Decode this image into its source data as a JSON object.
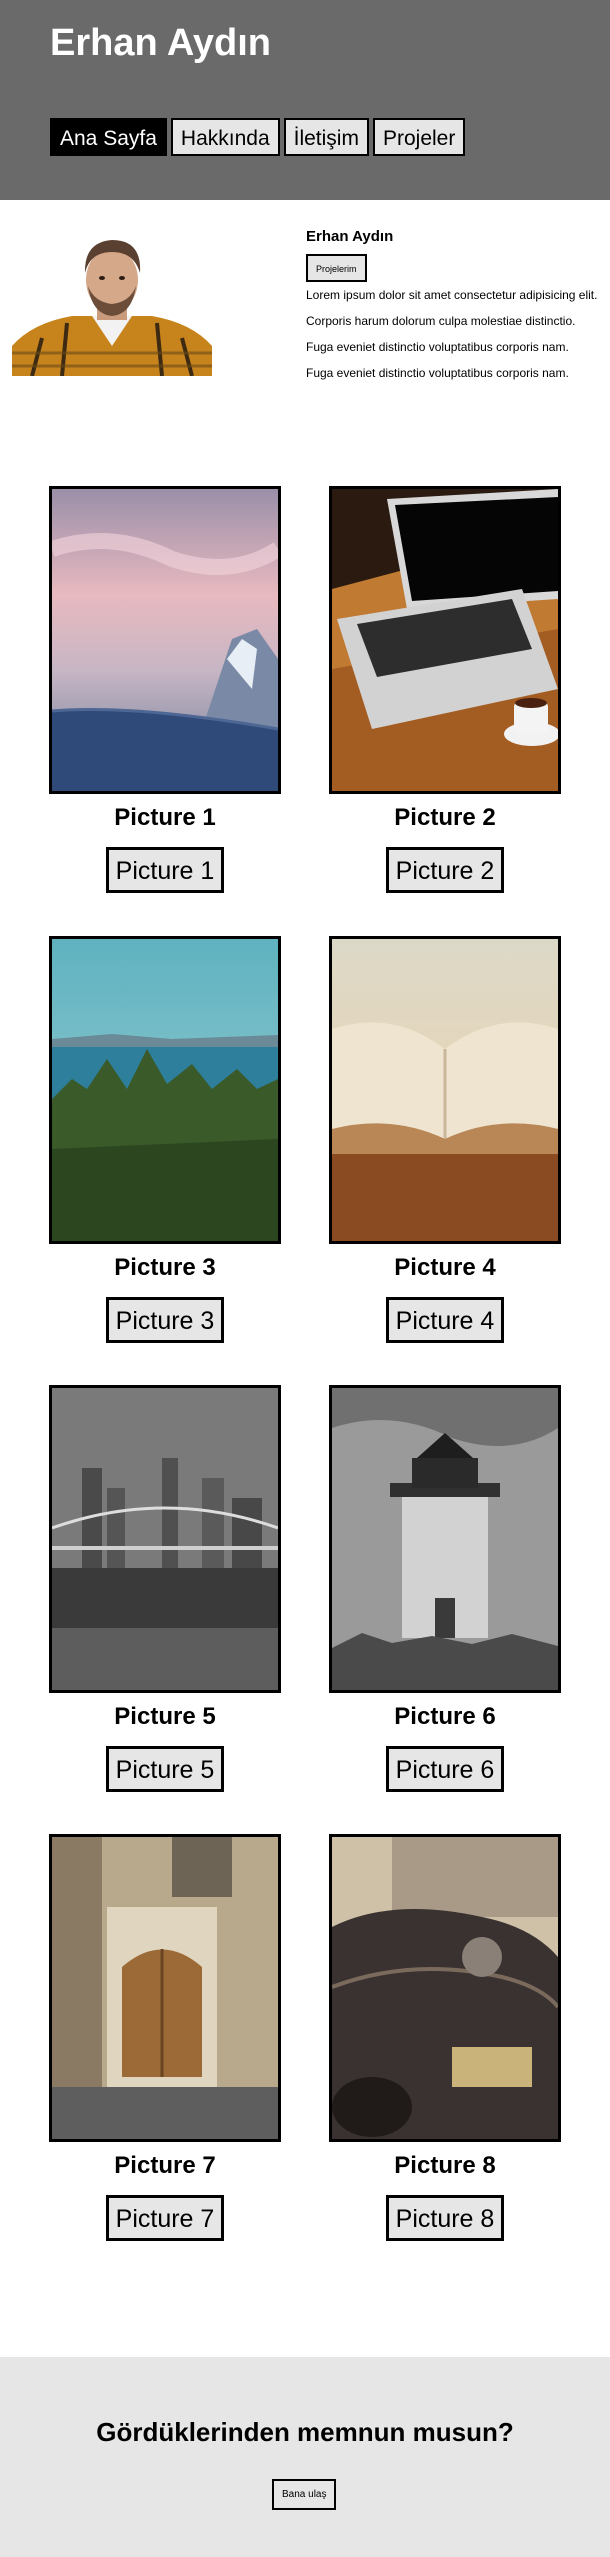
{
  "header": {
    "title": "Erhan Aydın",
    "nav": [
      {
        "label": "Ana Sayfa",
        "active": true
      },
      {
        "label": "Hakkında",
        "active": false
      },
      {
        "label": "İletişim",
        "active": false
      },
      {
        "label": "Projeler",
        "active": false
      }
    ]
  },
  "profile": {
    "name": "Erhan Aydın",
    "button_label": "Projelerim",
    "lines": [
      "Lorem ipsum dolor sit amet consectetur adipisicing elit.",
      "Corporis harum dolorum culpa molestiae distinctio.",
      "Fuga eveniet distinctio voluptatibus corporis nam.",
      "Fuga eveniet distinctio voluptatibus corporis nam."
    ]
  },
  "gallery": [
    {
      "caption": "Picture 1",
      "button": "Picture 1",
      "image": "snowy-mountain-sunset"
    },
    {
      "caption": "Picture 2",
      "button": "Picture 2",
      "image": "laptop-coffee"
    },
    {
      "caption": "Picture 3",
      "button": "Picture 3",
      "image": "forest-lake"
    },
    {
      "caption": "Picture 4",
      "button": "Picture 4",
      "image": "open-book"
    },
    {
      "caption": "Picture 5",
      "button": "Picture 5",
      "image": "city-bridge-night"
    },
    {
      "caption": "Picture 6",
      "button": "Picture 6",
      "image": "lighthouse"
    },
    {
      "caption": "Picture 7",
      "button": "Picture 7",
      "image": "old-door"
    },
    {
      "caption": "Picture 8",
      "button": "Picture 8",
      "image": "vintage-car"
    }
  ],
  "footer": {
    "title": "Gördüklerinden memnun musun?",
    "button_label": "Bana ulaş"
  },
  "colors": {
    "header_bg": "#6a6a6a",
    "button_bg": "#e6e6e6",
    "active_nav_bg": "#000000",
    "footer_bg": "#e6e6e6"
  }
}
